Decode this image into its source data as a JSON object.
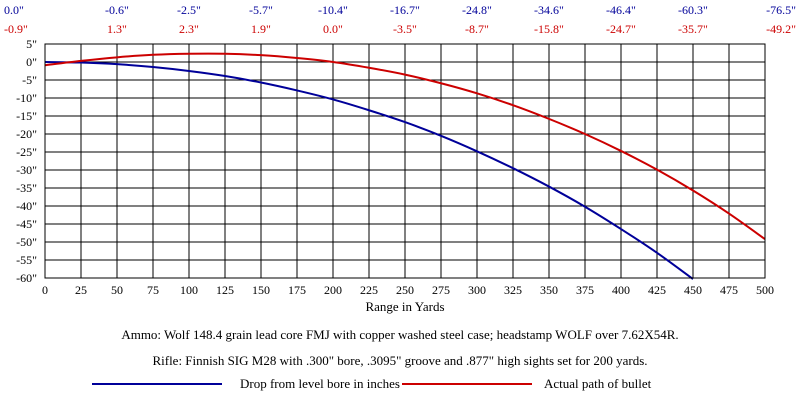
{
  "chart_data": {
    "type": "line",
    "xlabel": "Range in Yards",
    "ylabel": "",
    "xlim": [
      0,
      500
    ],
    "ylim": [
      -60,
      5
    ],
    "x_ticks": [
      0,
      25,
      50,
      75,
      100,
      125,
      150,
      175,
      200,
      225,
      250,
      275,
      300,
      325,
      350,
      375,
      400,
      425,
      450,
      475,
      500
    ],
    "y_ticks": [
      5,
      0,
      -5,
      -10,
      -15,
      -20,
      -25,
      -30,
      -35,
      -40,
      -45,
      -50,
      -55,
      -60
    ],
    "y_tick_labels": [
      "5\"",
      "0\"",
      "-5\"",
      "-10\"",
      "-15\"",
      "-20\"",
      "-25\"",
      "-30\"",
      "-35\"",
      "-40\"",
      "-45\"",
      "-50\"",
      "-55\"",
      "-60\""
    ],
    "grid": true,
    "top_labels": {
      "drop_row": [
        "0.0\"",
        "-0.6\"",
        "-2.5\"",
        "-5.7\"",
        "-10.4\"",
        "-16.7\"",
        "-24.8\"",
        "-34.6\"",
        "-46.4\"",
        "-60.3\"",
        "-76.5\""
      ],
      "path_row": [
        "-0.9\"",
        "1.3\"",
        "2.3\"",
        "1.9\"",
        "0.0\"",
        "-3.5\"",
        "-8.7\"",
        "-15.8\"",
        "-24.7\"",
        "-35.7\"",
        "-49.2\""
      ],
      "x": [
        0,
        50,
        100,
        150,
        200,
        250,
        300,
        350,
        400,
        450,
        500
      ]
    },
    "series": [
      {
        "name": "Drop from level bore in inches",
        "color": "#000099",
        "x": [
          0,
          25,
          50,
          75,
          100,
          125,
          150,
          175,
          200,
          225,
          250,
          275,
          300,
          325,
          350,
          375,
          400,
          425,
          450
        ],
        "values": [
          0.0,
          -0.15,
          -0.6,
          -1.4,
          -2.5,
          -3.9,
          -5.7,
          -7.9,
          -10.4,
          -13.4,
          -16.7,
          -20.5,
          -24.8,
          -29.5,
          -34.6,
          -40.2,
          -46.4,
          -53.0,
          -60.3
        ]
      },
      {
        "name": "Actual path of bullet",
        "color": "#cc0000",
        "x": [
          0,
          25,
          50,
          75,
          100,
          125,
          150,
          175,
          200,
          225,
          250,
          275,
          300,
          325,
          350,
          375,
          400,
          425,
          450,
          475,
          500
        ],
        "values": [
          -0.9,
          0.3,
          1.3,
          2.0,
          2.3,
          2.3,
          1.9,
          1.1,
          0.0,
          -1.6,
          -3.5,
          -5.9,
          -8.7,
          -12.0,
          -15.8,
          -20.0,
          -24.7,
          -29.9,
          -35.7,
          -42.1,
          -49.2
        ]
      }
    ]
  },
  "notes": {
    "ammo": "Ammo:  Wolf 148.4 grain lead core FMJ with copper washed steel case; headstamp WOLF over 7.62X54R.",
    "rifle": "Rifle:  Finnish SIG M28 with .300\" bore, .3095\" groove and .877\" high sights set for 200 yards."
  },
  "legend": {
    "drop_label": "Drop from level bore in inches",
    "path_label": "Actual path of bullet",
    "drop_color": "#000099",
    "path_color": "#cc0000"
  }
}
